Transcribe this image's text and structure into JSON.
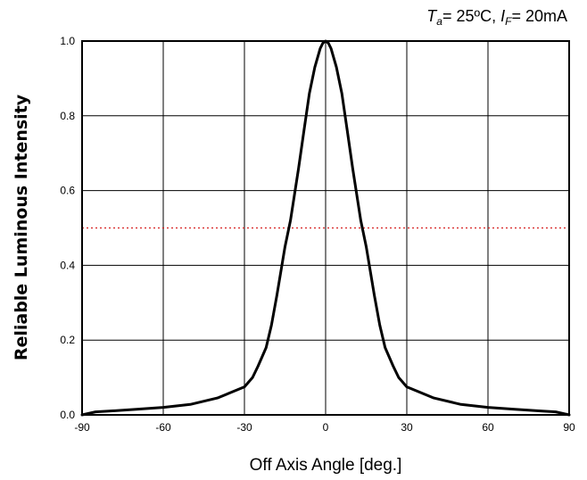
{
  "chart_data": {
    "type": "line",
    "title": "",
    "xlabel": "Off Axis Angle [deg.]",
    "ylabel": "Reliable Luminous Intensity",
    "xlim": [
      -90,
      90
    ],
    "ylim": [
      0,
      1.0
    ],
    "xticks": [
      "-90",
      "-60",
      "-30",
      "0",
      "30",
      "60",
      "90"
    ],
    "xtick_values": [
      -90,
      -60,
      -30,
      0,
      30,
      60,
      90
    ],
    "yticks": [
      "0.0",
      "0.2",
      "0.4",
      "0.6",
      "0.8",
      "1.0"
    ],
    "ytick_values": [
      0,
      0.2,
      0.4,
      0.6,
      0.8,
      1.0
    ],
    "grid": true,
    "conditions": {
      "ta_symbol": "T",
      "ta_sub": "a",
      "ta_value": "= 25ºC, ",
      "if_symbol": "I",
      "if_sub": "F",
      "if_value": "= 20mA"
    },
    "reference_line": {
      "y": 0.5,
      "color": "#d62020",
      "style": "dotted"
    },
    "series": [
      {
        "color": "#000000",
        "points": [
          [
            -90,
            0.0
          ],
          [
            -85,
            0.008
          ],
          [
            -80,
            0.01
          ],
          [
            -70,
            0.015
          ],
          [
            -60,
            0.02
          ],
          [
            -50,
            0.028
          ],
          [
            -40,
            0.045
          ],
          [
            -35,
            0.06
          ],
          [
            -30,
            0.075
          ],
          [
            -27,
            0.1
          ],
          [
            -25,
            0.13
          ],
          [
            -22,
            0.18
          ],
          [
            -20,
            0.24
          ],
          [
            -18,
            0.32
          ],
          [
            -15,
            0.45
          ],
          [
            -13,
            0.52
          ],
          [
            -10,
            0.66
          ],
          [
            -8,
            0.76
          ],
          [
            -6,
            0.86
          ],
          [
            -4,
            0.93
          ],
          [
            -2,
            0.98
          ],
          [
            -1,
            0.995
          ],
          [
            0,
            1.0
          ],
          [
            1,
            0.995
          ],
          [
            2,
            0.98
          ],
          [
            4,
            0.93
          ],
          [
            6,
            0.86
          ],
          [
            8,
            0.76
          ],
          [
            10,
            0.66
          ],
          [
            13,
            0.52
          ],
          [
            15,
            0.45
          ],
          [
            18,
            0.32
          ],
          [
            20,
            0.24
          ],
          [
            22,
            0.18
          ],
          [
            25,
            0.13
          ],
          [
            27,
            0.1
          ],
          [
            30,
            0.075
          ],
          [
            35,
            0.06
          ],
          [
            40,
            0.045
          ],
          [
            50,
            0.028
          ],
          [
            60,
            0.02
          ],
          [
            70,
            0.015
          ],
          [
            80,
            0.01
          ],
          [
            85,
            0.008
          ],
          [
            90,
            0.0
          ]
        ]
      }
    ]
  }
}
